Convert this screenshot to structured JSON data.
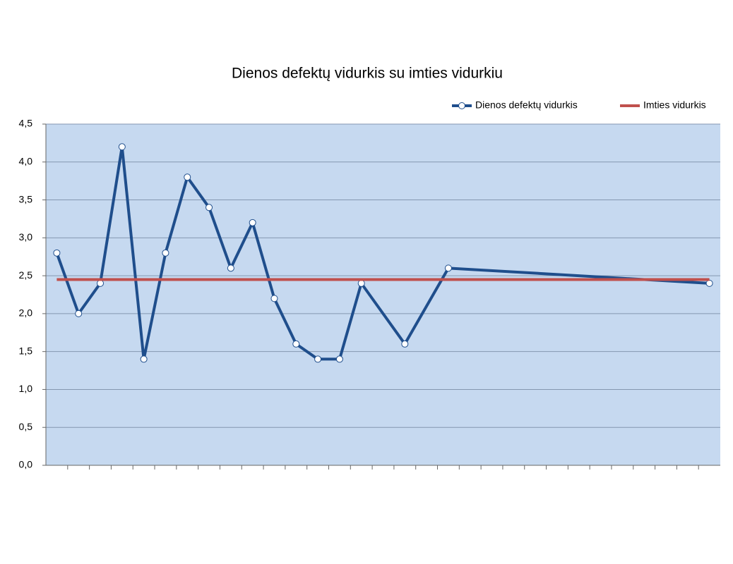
{
  "chart_data": {
    "type": "line",
    "title": "Dienos defektų vidurkis su imties vidurkiu",
    "categories": [
      null,
      null,
      null,
      null,
      null,
      null,
      null,
      null,
      null,
      null,
      null,
      null,
      null,
      null,
      null,
      null,
      null,
      null,
      null,
      null,
      null,
      null,
      null,
      null,
      null,
      null,
      null,
      null,
      null,
      null,
      null
    ],
    "series": [
      {
        "name": "Dienos defektų vidurkis",
        "color": "#1f4e8c",
        "markers": true,
        "values": [
          2.8,
          2.0,
          2.4,
          4.2,
          1.4,
          2.8,
          3.8,
          3.4,
          2.6,
          3.2,
          2.2,
          1.6,
          1.4,
          1.4,
          2.4,
          null,
          1.6,
          null,
          2.6,
          null,
          null,
          null,
          null,
          null,
          null,
          null,
          null,
          null,
          null,
          null,
          2.4
        ]
      },
      {
        "name": "Imties vidurkis",
        "color": "#c0504d",
        "markers": false,
        "values": [
          2.45,
          2.45,
          2.45,
          2.45,
          2.45,
          2.45,
          2.45,
          2.45,
          2.45,
          2.45,
          2.45,
          2.45,
          2.45,
          2.45,
          2.45,
          2.45,
          2.45,
          2.45,
          2.45,
          2.45,
          2.45,
          2.45,
          2.45,
          2.45,
          2.45,
          2.45,
          2.45,
          2.45,
          2.45,
          2.45,
          2.45
        ]
      }
    ],
    "connect_gaps": true,
    "ylim": [
      0,
      4.5
    ],
    "yticks": [
      {
        "value": 0,
        "label": "0,0"
      },
      {
        "value": 0.5,
        "label": "0,5"
      },
      {
        "value": 1,
        "label": "1,0"
      },
      {
        "value": 1.5,
        "label": "1,5"
      },
      {
        "value": 2,
        "label": "2,0"
      },
      {
        "value": 2.5,
        "label": "2,5"
      },
      {
        "value": 3,
        "label": "3,0"
      },
      {
        "value": 3.5,
        "label": "3,5"
      },
      {
        "value": 4,
        "label": "4,0"
      },
      {
        "value": 4.5,
        "label": "4,5"
      }
    ],
    "grid": true,
    "legend": "top-right",
    "plot_background": "#c6d9f0"
  }
}
